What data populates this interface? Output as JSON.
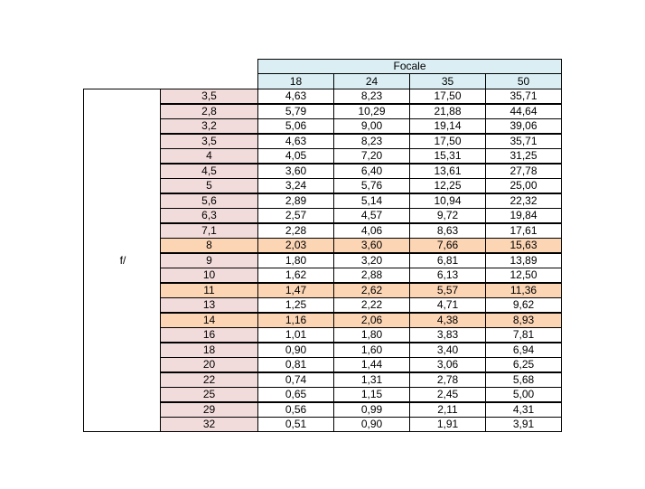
{
  "table": {
    "title": "Focale",
    "row_label": "f/",
    "focal_lengths": [
      "18",
      "24",
      "35",
      "50"
    ],
    "rows": [
      {
        "aperture": "3,5",
        "values": [
          "4,63",
          "8,23",
          "17,50",
          "35,71"
        ],
        "highlight": false
      },
      {
        "aperture": "2,8",
        "values": [
          "5,79",
          "10,29",
          "21,88",
          "44,64"
        ],
        "highlight": false
      },
      {
        "aperture": "3,2",
        "values": [
          "5,06",
          "9,00",
          "19,14",
          "39,06"
        ],
        "highlight": false
      },
      {
        "aperture": "3,5",
        "values": [
          "4,63",
          "8,23",
          "17,50",
          "35,71"
        ],
        "highlight": false
      },
      {
        "aperture": "4",
        "values": [
          "4,05",
          "7,20",
          "15,31",
          "31,25"
        ],
        "highlight": false
      },
      {
        "aperture": "4,5",
        "values": [
          "3,60",
          "6,40",
          "13,61",
          "27,78"
        ],
        "highlight": false
      },
      {
        "aperture": "5",
        "values": [
          "3,24",
          "5,76",
          "12,25",
          "25,00"
        ],
        "highlight": false
      },
      {
        "aperture": "5,6",
        "values": [
          "2,89",
          "5,14",
          "10,94",
          "22,32"
        ],
        "highlight": false
      },
      {
        "aperture": "6,3",
        "values": [
          "2,57",
          "4,57",
          "9,72",
          "19,84"
        ],
        "highlight": false
      },
      {
        "aperture": "7,1",
        "values": [
          "2,28",
          "4,06",
          "8,63",
          "17,61"
        ],
        "highlight": false
      },
      {
        "aperture": "8",
        "values": [
          "2,03",
          "3,60",
          "7,66",
          "15,63"
        ],
        "highlight": true
      },
      {
        "aperture": "9",
        "values": [
          "1,80",
          "3,20",
          "6,81",
          "13,89"
        ],
        "highlight": false
      },
      {
        "aperture": "10",
        "values": [
          "1,62",
          "2,88",
          "6,13",
          "12,50"
        ],
        "highlight": false
      },
      {
        "aperture": "11",
        "values": [
          "1,47",
          "2,62",
          "5,57",
          "11,36"
        ],
        "highlight": true
      },
      {
        "aperture": "13",
        "values": [
          "1,25",
          "2,22",
          "4,71",
          "9,62"
        ],
        "highlight": false
      },
      {
        "aperture": "14",
        "values": [
          "1,16",
          "2,06",
          "4,38",
          "8,93"
        ],
        "highlight": true
      },
      {
        "aperture": "16",
        "values": [
          "1,01",
          "1,80",
          "3,83",
          "7,81"
        ],
        "highlight": false
      },
      {
        "aperture": "18",
        "values": [
          "0,90",
          "1,60",
          "3,40",
          "6,94"
        ],
        "highlight": false
      },
      {
        "aperture": "20",
        "values": [
          "0,81",
          "1,44",
          "3,06",
          "6,25"
        ],
        "highlight": false
      },
      {
        "aperture": "22",
        "values": [
          "0,74",
          "1,31",
          "2,78",
          "5,68"
        ],
        "highlight": false
      },
      {
        "aperture": "25",
        "values": [
          "0,65",
          "1,15",
          "2,45",
          "5,00"
        ],
        "highlight": false
      },
      {
        "aperture": "29",
        "values": [
          "0,56",
          "0,99",
          "2,11",
          "4,31"
        ],
        "highlight": false
      },
      {
        "aperture": "32",
        "values": [
          "0,51",
          "0,90",
          "1,91",
          "3,91"
        ],
        "highlight": false
      }
    ]
  },
  "colors": {
    "header_blue": "#daeef3",
    "aperture_pink": "#f2dcdb",
    "highlight_orange": "#fcd5b4"
  }
}
